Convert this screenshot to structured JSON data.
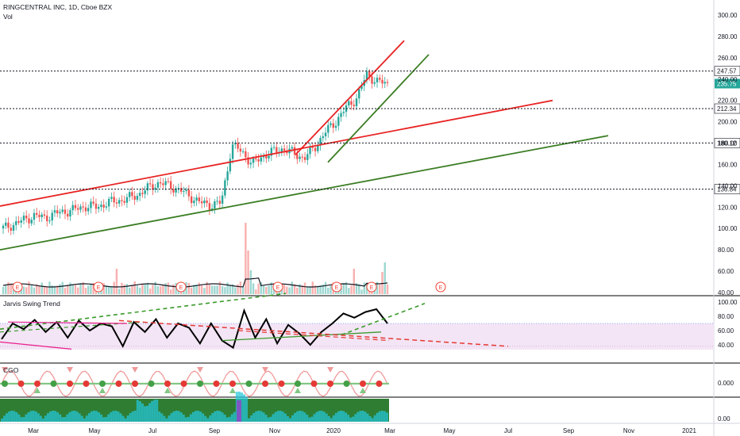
{
  "header": {
    "title": "RINGCENTRAL INC, 1D, Cboe BZX",
    "vol_label": "Vol"
  },
  "colors": {
    "up": "#26a69a",
    "down": "#ef5350",
    "red_line": "#e82323",
    "green_line": "#3b7d23",
    "level_dot": "#131722",
    "badge_bg": "#ffffff",
    "price_badge": "#26a69a",
    "swing_band": "#f3e5f5",
    "earnings": "#f44336"
  },
  "chart_data": [
    {
      "name": "price",
      "type": "candlestick",
      "ylim": [
        40,
        310
      ],
      "price_ticks": [
        300,
        280,
        260,
        240,
        220,
        200,
        180,
        160,
        140,
        120,
        100,
        80,
        60,
        40
      ],
      "price_tick_labels": [
        "300.00",
        "280.00",
        "260.00",
        "240.00",
        "220.00",
        "200.00",
        "180.00",
        "160.00",
        "140.00",
        "120.00",
        "100.00",
        "80.00",
        "60.00",
        "40.00"
      ],
      "levels": [
        247.57,
        212.34,
        180.12,
        136.84
      ],
      "level_labels": [
        "247.57",
        "212.34",
        "180.12",
        "136.84"
      ],
      "last_price": "235.75",
      "x_labels": [
        "Mar",
        "May",
        "Jul",
        "Sep",
        "Nov",
        "2020",
        "Mar",
        "May",
        "Jul",
        "Sep",
        "Nov",
        "2021"
      ],
      "earnings_marker": "E",
      "close": [
        100,
        104,
        108,
        112,
        110,
        114,
        116,
        118,
        121,
        120,
        124,
        126,
        128,
        132,
        138,
        143,
        140,
        136,
        130,
        124,
        122,
        124,
        178,
        172,
        160,
        168,
        172,
        175,
        170,
        166,
        176,
        190,
        200,
        213,
        222,
        244,
        238,
        235
      ]
    },
    {
      "name": "Jarvis Swing Trend",
      "type": "line",
      "ticks": [
        100,
        80,
        60,
        40
      ],
      "tick_labels": [
        "100.00",
        "80.00",
        "60.00",
        "40.00"
      ],
      "ylim": [
        30,
        105
      ],
      "values": [
        48,
        70,
        62,
        75,
        58,
        72,
        50,
        74,
        60,
        70,
        66,
        38,
        72,
        58,
        76,
        50,
        70,
        64,
        42,
        70,
        46,
        36,
        88,
        50,
        76,
        42,
        68,
        56,
        40,
        58,
        70,
        84,
        78,
        86,
        90,
        70
      ]
    },
    {
      "name": "CGO",
      "type": "line",
      "ticks": [
        0
      ],
      "tick_labels": [
        "0.000"
      ]
    },
    {
      "name": "histogram",
      "type": "area",
      "ticks": [
        0
      ],
      "tick_labels": [
        "0.00"
      ]
    }
  ]
}
